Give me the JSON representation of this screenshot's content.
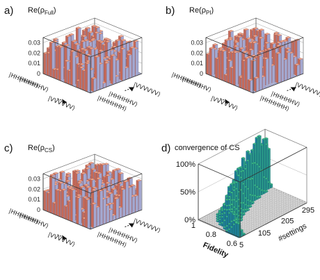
{
  "chart_data": [
    {
      "panel": "a)",
      "type": "bar3d",
      "title_main": "Re(ρ",
      "title_sub": "Full",
      "title_close": ")",
      "zticks": [
        "0",
        "0.01",
        "0.02",
        "0.03"
      ],
      "zlim": [
        0,
        0.035
      ],
      "row_labels": [
        "|HHHHHH⟩",
        "|HHHHHV⟩",
        "|VVVVVV⟩"
      ],
      "col_labels": [
        "|HHHHHH⟩",
        "|HHHHHV⟩",
        "|VVVVVV⟩"
      ]
    },
    {
      "panel": "b)",
      "type": "bar3d",
      "title_main": "Re(ρ",
      "title_sub": "PI",
      "title_close": ")",
      "zticks": [
        "0",
        "0.01",
        "0.02",
        "0.03"
      ],
      "zlim": [
        0,
        0.035
      ],
      "row_labels": [
        "|HHHHHH⟩",
        "|HHHHHV⟩",
        "|VVVVVV⟩"
      ],
      "col_labels": [
        "|HHHHHH⟩",
        "|HHHHHV⟩",
        "|VVVVVV⟩"
      ]
    },
    {
      "panel": "c)",
      "type": "bar3d",
      "title_main": "Re(ρ",
      "title_sub": "CS",
      "title_close": ")",
      "zticks": [
        "0",
        "0.01",
        "0.02",
        "0.03"
      ],
      "zlim": [
        0,
        0.035
      ],
      "row_labels": [
        "|HHHHHH⟩",
        "|HHHHHV⟩",
        "|VVVVVV⟩"
      ],
      "col_labels": [
        "|HHHHHH⟩",
        "|HHHHHV⟩",
        "|VVVVVV⟩"
      ]
    },
    {
      "panel": "d)",
      "type": "histogram3d",
      "title": "convergence of CS",
      "zticks": [
        "0%",
        "50%",
        "100%"
      ],
      "fidelity_label": "Fidelity",
      "fidelity_ticks": [
        "1",
        "0.8",
        "0.6"
      ],
      "settings_label": "#settings",
      "settings_ticks": [
        "5",
        "105",
        "205",
        "295"
      ],
      "settings_range": [
        5,
        295
      ],
      "fidelity_range": [
        0.6,
        1
      ],
      "peak_series": [
        {
          "settings": 5,
          "peak_fidelity": 0.62
        },
        {
          "settings": 35,
          "peak_fidelity": 0.77
        },
        {
          "settings": 65,
          "peak_fidelity": 0.84
        },
        {
          "settings": 95,
          "peak_fidelity": 0.88
        },
        {
          "settings": 125,
          "peak_fidelity": 0.91
        },
        {
          "settings": 155,
          "peak_fidelity": 0.93
        },
        {
          "settings": 185,
          "peak_fidelity": 0.95
        },
        {
          "settings": 215,
          "peak_fidelity": 0.96
        },
        {
          "settings": 245,
          "peak_fidelity": 0.97
        },
        {
          "settings": 295,
          "peak_fidelity": 0.98
        }
      ]
    }
  ],
  "colors": {
    "bar_top": "#f0a48a",
    "bar_side": "#c46a5a",
    "bar_back": "#a4a8d0",
    "hist_green": "#3fbf8c",
    "hist_teal": "#1f7f9a",
    "grid": "#555555"
  }
}
